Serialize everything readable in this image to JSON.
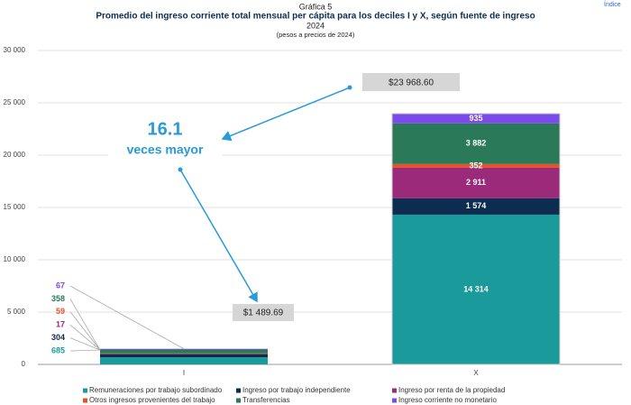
{
  "nav": {
    "index_link": "Índice"
  },
  "chart_data": {
    "type": "bar",
    "stacked": true,
    "label": "Gráfica 5",
    "title": "Promedio del ingreso corriente total mensual per cápita para los deciles I y X, según fuente de ingreso",
    "subtitle": "2024",
    "note": "(pesos a precios de 2024)",
    "categories": [
      "I",
      "X"
    ],
    "series": [
      {
        "name": "Remuneraciones por trabajo subordinado",
        "color": "#1a9a9a",
        "values": [
          685,
          14314
        ],
        "value_labels": [
          "685",
          "14 314"
        ]
      },
      {
        "name": "Ingreso por trabajo independiente",
        "color": "#0d2d50",
        "values": [
          304,
          1574
        ],
        "value_labels": [
          "304",
          "1 574"
        ]
      },
      {
        "name": "Ingreso por renta de la propiedad",
        "color": "#9b2a7a",
        "values": [
          17,
          2911
        ],
        "value_labels": [
          "17",
          "2 911"
        ]
      },
      {
        "name": "Otros ingresos provenientes del trabajo",
        "color": "#e8502a",
        "values": [
          59,
          352
        ],
        "value_labels": [
          "59",
          "352"
        ]
      },
      {
        "name": "Transferencias",
        "color": "#2a7a5a",
        "values": [
          358,
          3882
        ],
        "value_labels": [
          "358",
          "3 882"
        ]
      },
      {
        "name": "Ingreso corriente no monetario",
        "color": "#7b4ae8",
        "values": [
          67,
          935
        ],
        "value_labels": [
          "67",
          "935"
        ]
      }
    ],
    "ylim": [
      0,
      30000
    ],
    "yticks": [
      0,
      {
        "value": 5000,
        "label": "5 000"
      },
      {
        "value": 10000,
        "label": "10 000"
      },
      {
        "value": 15000,
        "label": "15 000"
      },
      {
        "value": 20000,
        "label": "20 000"
      },
      {
        "value": 25000,
        "label": "25 000"
      },
      {
        "value": 30000,
        "label": "30 000"
      }
    ],
    "grid": true,
    "annotations": [
      "$23 968.60",
      "$1 489.69",
      "16.1",
      "veces mayor"
    ]
  }
}
